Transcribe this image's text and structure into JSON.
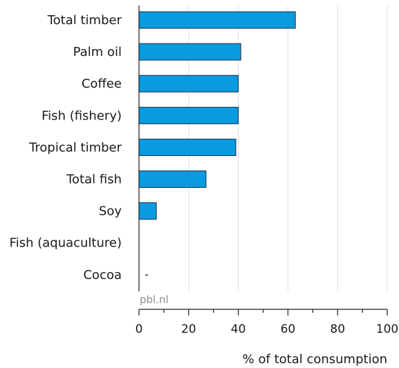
{
  "chart_data": {
    "type": "bar",
    "orientation": "horizontal",
    "categories": [
      "Total timber",
      "Palm oil",
      "Coffee",
      "Fish (fishery)",
      "Tropical timber",
      "Total fish",
      "Soy",
      "Fish (aquaculture)",
      "Cocoa"
    ],
    "values": [
      63,
      41,
      40,
      40,
      39,
      27,
      7,
      null,
      0
    ],
    "value_labels": {
      "Cocoa": "-"
    },
    "xlabel": "% of total consumption",
    "xlim": [
      0,
      100
    ],
    "xticks": [
      0,
      20,
      40,
      60,
      80,
      100
    ],
    "grid": true,
    "bar_color": "#0a9ae0",
    "source": "pbl.nl"
  }
}
